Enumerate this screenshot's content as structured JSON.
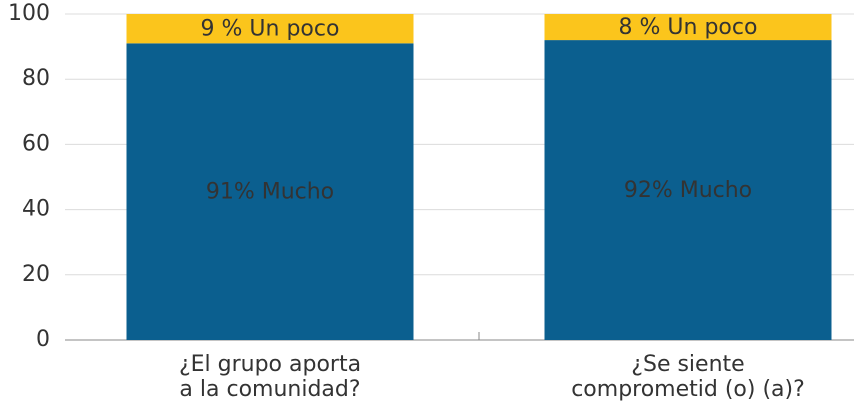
{
  "chart_data": {
    "type": "stacked-bar",
    "categories": [
      [
        "¿El grupo aporta",
        "a la comunidad?"
      ],
      [
        "¿Se siente",
        "comprometid (o) (a)?"
      ]
    ],
    "series": [
      {
        "color": "#0b5f8f",
        "values": [
          91,
          92
        ],
        "value_labels": [
          "91% Mucho",
          "92% Mucho"
        ]
      },
      {
        "color": "#fbc51c",
        "values": [
          9,
          8
        ],
        "value_labels": [
          "9 % Un poco",
          "8 % Un poco"
        ]
      }
    ],
    "ylim": [
      0,
      100
    ],
    "yticks": [
      0,
      20,
      40,
      60,
      80,
      100
    ],
    "grid": true
  }
}
